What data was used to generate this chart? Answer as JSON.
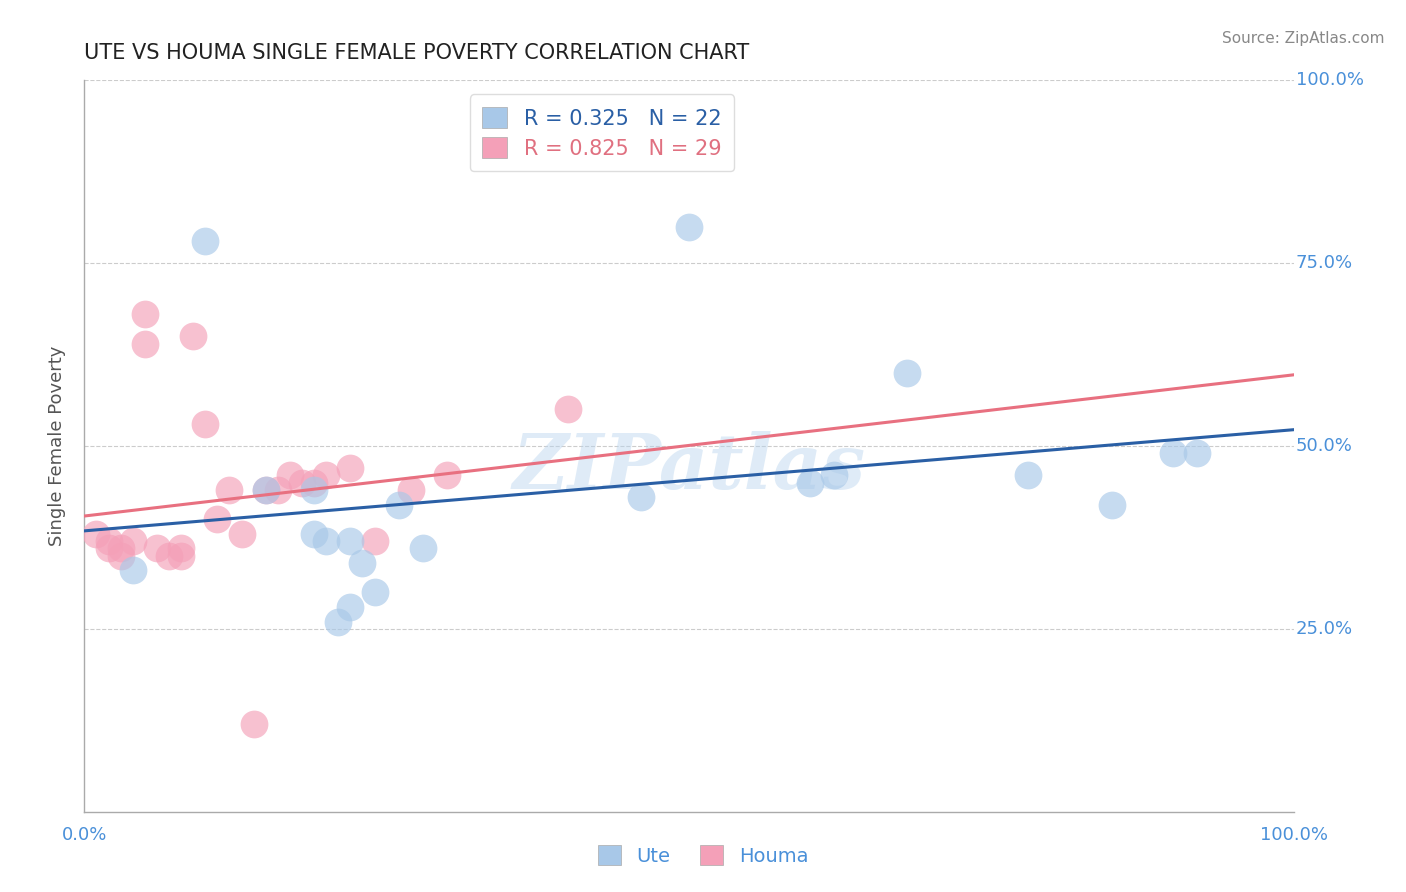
{
  "title": "UTE VS HOUMA SINGLE FEMALE POVERTY CORRELATION CHART",
  "source_text": "Source: ZipAtlas.com",
  "ylabel": "Single Female Poverty",
  "watermark": "ZIPatlas",
  "xlim": [
    0.0,
    1.0
  ],
  "ylim": [
    0.0,
    1.0
  ],
  "xticks": [
    0.0,
    0.25,
    0.5,
    0.75,
    1.0
  ],
  "yticks": [
    0.0,
    0.25,
    0.5,
    0.75,
    1.0
  ],
  "ute_color": "#A8C8E8",
  "houma_color": "#F4A0B8",
  "ute_line_color": "#2A5FA5",
  "houma_line_color": "#E87080",
  "legend_ute_label": "R = 0.325   N = 22",
  "legend_houma_label": "R = 0.825   N = 29",
  "ute_x": [
    0.04,
    0.1,
    0.15,
    0.19,
    0.19,
    0.2,
    0.21,
    0.22,
    0.22,
    0.23,
    0.24,
    0.26,
    0.28,
    0.46,
    0.5,
    0.6,
    0.62,
    0.68,
    0.78,
    0.85,
    0.9,
    0.92
  ],
  "ute_y": [
    0.33,
    0.78,
    0.44,
    0.44,
    0.38,
    0.37,
    0.26,
    0.28,
    0.37,
    0.34,
    0.3,
    0.42,
    0.36,
    0.43,
    0.8,
    0.45,
    0.46,
    0.6,
    0.46,
    0.42,
    0.49,
    0.49
  ],
  "houma_x": [
    0.01,
    0.02,
    0.02,
    0.03,
    0.03,
    0.04,
    0.05,
    0.05,
    0.06,
    0.07,
    0.08,
    0.08,
    0.09,
    0.1,
    0.11,
    0.12,
    0.13,
    0.14,
    0.15,
    0.16,
    0.17,
    0.18,
    0.19,
    0.2,
    0.22,
    0.24,
    0.27,
    0.3,
    0.4
  ],
  "houma_y": [
    0.38,
    0.36,
    0.37,
    0.35,
    0.36,
    0.37,
    0.68,
    0.64,
    0.36,
    0.35,
    0.35,
    0.36,
    0.65,
    0.53,
    0.4,
    0.44,
    0.38,
    0.12,
    0.44,
    0.44,
    0.46,
    0.45,
    0.45,
    0.46,
    0.47,
    0.37,
    0.44,
    0.46,
    0.55
  ],
  "background_color": "#FFFFFF",
  "grid_color": "#CCCCCC",
  "title_color": "#222222",
  "axis_label_color": "#555555",
  "tick_label_color": "#4A90D9",
  "source_color": "#888888",
  "legend_box_color": "#FFFFFF"
}
